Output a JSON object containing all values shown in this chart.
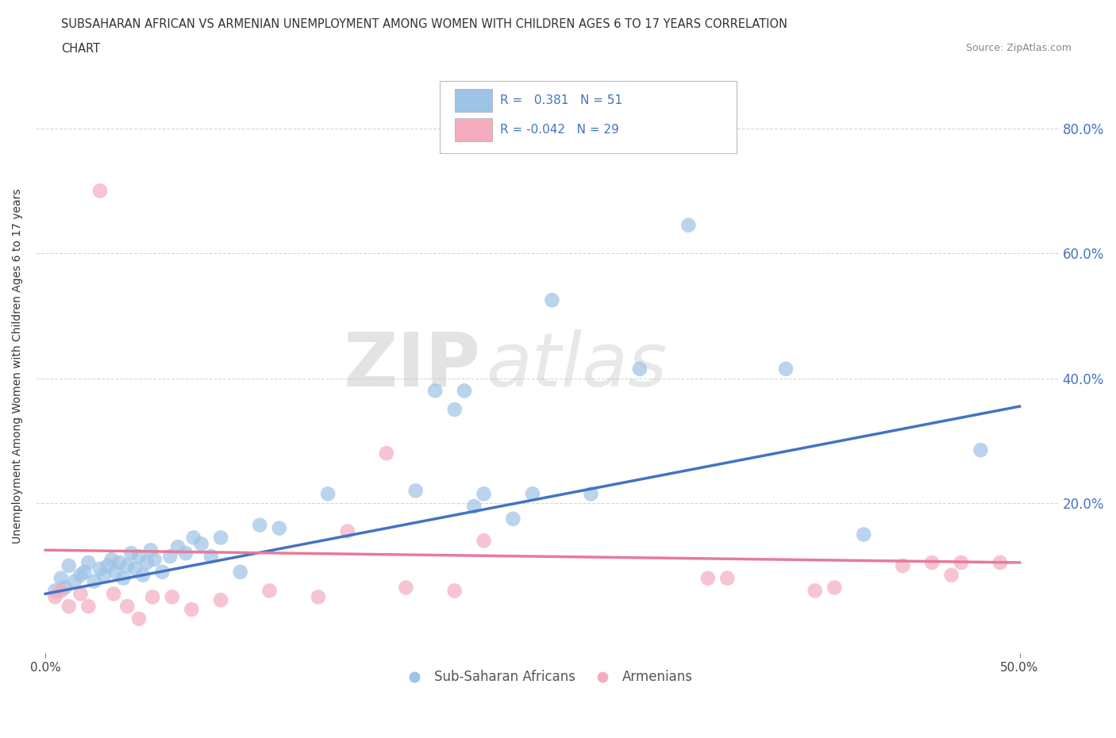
{
  "title_line1": "SUBSAHARAN AFRICAN VS ARMENIAN UNEMPLOYMENT AMONG WOMEN WITH CHILDREN AGES 6 TO 17 YEARS CORRELATION",
  "title_line2": "CHART",
  "source": "Source: ZipAtlas.com",
  "ylabel": "Unemployment Among Women with Children Ages 6 to 17 years",
  "xlim": [
    -0.005,
    0.52
  ],
  "ylim": [
    -0.04,
    0.88
  ],
  "xtick_labels": [
    "0.0%",
    "50.0%"
  ],
  "xtick_vals": [
    0.0,
    0.5
  ],
  "ytick_labels": [
    "20.0%",
    "40.0%",
    "60.0%",
    "80.0%"
  ],
  "ytick_vals": [
    0.2,
    0.4,
    0.6,
    0.8
  ],
  "blue_color": "#9DC3E6",
  "pink_color": "#F4ACBE",
  "blue_line_color": "#4472C4",
  "pink_line_color": "#E8799A",
  "R_blue": 0.381,
  "N_blue": 51,
  "R_pink": -0.042,
  "N_pink": 29,
  "watermark_zip": "ZIP",
  "watermark_atlas": "atlas",
  "grid_color": "#CCCCCC",
  "blue_scatter_x": [
    0.005,
    0.008,
    0.01,
    0.012,
    0.015,
    0.018,
    0.02,
    0.022,
    0.025,
    0.028,
    0.03,
    0.032,
    0.034,
    0.036,
    0.038,
    0.04,
    0.042,
    0.044,
    0.046,
    0.048,
    0.05,
    0.052,
    0.054,
    0.056,
    0.06,
    0.064,
    0.068,
    0.072,
    0.076,
    0.08,
    0.085,
    0.09,
    0.1,
    0.11,
    0.12,
    0.145,
    0.19,
    0.2,
    0.21,
    0.215,
    0.22,
    0.225,
    0.24,
    0.25,
    0.26,
    0.28,
    0.305,
    0.33,
    0.38,
    0.42,
    0.48
  ],
  "blue_scatter_y": [
    0.06,
    0.08,
    0.065,
    0.1,
    0.075,
    0.085,
    0.09,
    0.105,
    0.075,
    0.095,
    0.085,
    0.1,
    0.11,
    0.09,
    0.105,
    0.08,
    0.1,
    0.12,
    0.095,
    0.115,
    0.085,
    0.105,
    0.125,
    0.11,
    0.09,
    0.115,
    0.13,
    0.12,
    0.145,
    0.135,
    0.115,
    0.145,
    0.09,
    0.165,
    0.16,
    0.215,
    0.22,
    0.38,
    0.35,
    0.38,
    0.195,
    0.215,
    0.175,
    0.215,
    0.525,
    0.215,
    0.415,
    0.645,
    0.415,
    0.15,
    0.285
  ],
  "pink_scatter_x": [
    0.005,
    0.008,
    0.012,
    0.018,
    0.022,
    0.028,
    0.035,
    0.042,
    0.048,
    0.055,
    0.065,
    0.075,
    0.09,
    0.115,
    0.14,
    0.155,
    0.175,
    0.185,
    0.21,
    0.225,
    0.34,
    0.35,
    0.395,
    0.405,
    0.44,
    0.455,
    0.465,
    0.47,
    0.49
  ],
  "pink_scatter_y": [
    0.05,
    0.06,
    0.035,
    0.055,
    0.035,
    0.7,
    0.055,
    0.035,
    0.015,
    0.05,
    0.05,
    0.03,
    0.045,
    0.06,
    0.05,
    0.155,
    0.28,
    0.065,
    0.06,
    0.14,
    0.08,
    0.08,
    0.06,
    0.065,
    0.1,
    0.105,
    0.085,
    0.105,
    0.105
  ],
  "legend_label_blue": "Sub-Saharan Africans",
  "legend_label_pink": "Armenians",
  "blue_trend_x0": 0.0,
  "blue_trend_x1": 0.5,
  "blue_trend_y0": 0.055,
  "blue_trend_y1": 0.355,
  "pink_trend_x0": 0.0,
  "pink_trend_x1": 0.5,
  "pink_trend_y0": 0.125,
  "pink_trend_y1": 0.105
}
